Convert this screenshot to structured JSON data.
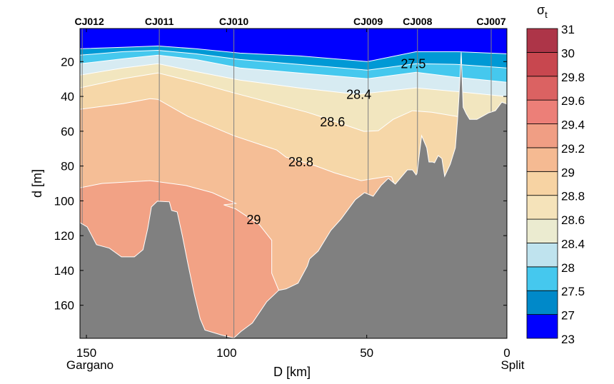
{
  "chart_data": {
    "type": "contour",
    "title": "",
    "xlabel": "D [km]",
    "ylabel": "d [m]",
    "xlim": [
      152.3,
      0
    ],
    "ylim": [
      1,
      179
    ],
    "x_ticks": [
      150,
      100,
      50,
      0
    ],
    "x_tick_labels": [
      "150",
      "100",
      "50",
      "0"
    ],
    "y_ticks": [
      20,
      40,
      60,
      80,
      100,
      120,
      140,
      160
    ],
    "y_tick_labels": [
      "20",
      "40",
      "60",
      "80",
      "100",
      "120",
      "140",
      "160"
    ],
    "endpoint_labels": {
      "left": "Gargano",
      "right": "Split"
    },
    "stations": [
      {
        "name": "CJ012",
        "km": 151.5
      },
      {
        "name": "CJ011",
        "km": 124.0
      },
      {
        "name": "CJ010",
        "km": 97.4
      },
      {
        "name": "CJ009",
        "km": 49.5
      },
      {
        "name": "CJ008",
        "km": 31.9
      },
      {
        "name": "CJ007",
        "km": 5.6
      }
    ],
    "deepest_band_color": "#F2A285",
    "isolines": [
      {
        "level": 29,
        "fill_above": "#F5BE96",
        "points": [
          [
            152.3,
            92.5
          ],
          [
            144.4,
            90.0
          ],
          [
            127.3,
            88.4
          ],
          [
            114.5,
            91.2
          ],
          [
            105.1,
            95.3
          ],
          [
            96.7,
            101.5
          ],
          [
            101.0,
            102.3
          ],
          [
            96.7,
            104.7
          ],
          [
            88.3,
            113.7
          ],
          [
            83.9,
            122.7
          ],
          [
            83.9,
            141.6
          ],
          [
            81.4,
            151.4
          ],
          [
            75,
            160
          ],
          [
            0,
            170
          ]
        ]
      },
      {
        "level": 28.8,
        "fill_above": "#F6D7A8",
        "points": [
          [
            152.3,
            47.4
          ],
          [
            137.0,
            44.2
          ],
          [
            127.3,
            41.3
          ],
          [
            124.5,
            41.7
          ],
          [
            113.8,
            51.5
          ],
          [
            97.4,
            62.6
          ],
          [
            82.1,
            70.8
          ],
          [
            78.8,
            74.9
          ],
          [
            68.4,
            79.8
          ],
          [
            61.5,
            83.9
          ],
          [
            52.0,
            88.4
          ],
          [
            42.3,
            85.9
          ],
          [
            41.1,
            86.3
          ],
          [
            38,
            100
          ],
          [
            0,
            100
          ]
        ]
      },
      {
        "level": 28.6,
        "fill_above": "#F2E6BF",
        "points": [
          [
            152.3,
            35.1
          ],
          [
            137.0,
            29.8
          ],
          [
            124.5,
            26.5
          ],
          [
            111.0,
            31.9
          ],
          [
            97.4,
            38.0
          ],
          [
            71.2,
            49.1
          ],
          [
            65.8,
            51.9
          ],
          [
            51.0,
            60.1
          ],
          [
            45.9,
            59.7
          ],
          [
            40.6,
            53.2
          ],
          [
            33.7,
            48.2
          ],
          [
            26.8,
            49.1
          ],
          [
            16.3,
            51.9
          ],
          [
            15,
            60
          ],
          [
            0,
            60
          ]
        ]
      },
      {
        "level": 28.4,
        "fill_above": "#D7EBF2",
        "points": [
          [
            152.3,
            27.8
          ],
          [
            137.0,
            23.7
          ],
          [
            124.5,
            21.2
          ],
          [
            111.0,
            25.7
          ],
          [
            95.2,
            30.6
          ],
          [
            74.2,
            35.1
          ],
          [
            53.3,
            38.8
          ],
          [
            32.4,
            35.1
          ],
          [
            17.9,
            37.2
          ],
          [
            0,
            40.1
          ]
        ]
      },
      {
        "level": 28,
        "fill_above": "#45C8EE",
        "points": [
          [
            152.3,
            21.2
          ],
          [
            137.0,
            18.4
          ],
          [
            124.5,
            16.3
          ],
          [
            111.0,
            18.8
          ],
          [
            95.2,
            23.7
          ],
          [
            74.2,
            26.5
          ],
          [
            49.7,
            29.8
          ],
          [
            32.4,
            26.1
          ],
          [
            17.9,
            29.0
          ],
          [
            0,
            31.9
          ]
        ]
      },
      {
        "level": 27.5,
        "fill_above": "#0099D5",
        "points": [
          [
            152.3,
            16.3
          ],
          [
            137.0,
            14.3
          ],
          [
            124.5,
            13.5
          ],
          [
            111.0,
            15.5
          ],
          [
            95.2,
            18.8
          ],
          [
            74.2,
            21.6
          ],
          [
            49.7,
            24.9
          ],
          [
            32.4,
            21.2
          ],
          [
            17.9,
            21.6
          ],
          [
            0,
            23.7
          ]
        ]
      },
      {
        "level": 27,
        "fill_above": "#0000FF",
        "points": [
          [
            152.3,
            12.6
          ],
          [
            137.0,
            11.8
          ],
          [
            124.5,
            11.0
          ],
          [
            111.0,
            12.6
          ],
          [
            95.2,
            15.1
          ],
          [
            74.2,
            16.7
          ],
          [
            49.7,
            20.0
          ],
          [
            32.4,
            14.3
          ],
          [
            17.9,
            14.3
          ],
          [
            0,
            15.5
          ]
        ]
      }
    ],
    "contour_labels": [
      {
        "text": "27.5",
        "km": 33.4,
        "depth": 20.8
      },
      {
        "text": "28.4",
        "km": 52.8,
        "depth": 38.5
      },
      {
        "text": "28.6",
        "km": 62.2,
        "depth": 54.4
      },
      {
        "text": "28.8",
        "km": 73.5,
        "depth": 77.3
      },
      {
        "text": "29",
        "km": 90.3,
        "depth": 110.5
      }
    ],
    "bathymetry": {
      "color": "#808080",
      "points": [
        [
          152.3,
          112.5
        ],
        [
          149.7,
          115
        ],
        [
          146.4,
          125.2
        ],
        [
          141.8,
          127.2
        ],
        [
          137.5,
          132.2
        ],
        [
          132.9,
          132.2
        ],
        [
          129.8,
          128.1
        ],
        [
          128.1,
          115.8
        ],
        [
          126.8,
          103.5
        ],
        [
          124.7,
          100.2
        ],
        [
          120.4,
          100.6
        ],
        [
          119.6,
          105.5
        ],
        [
          117.6,
          106.4
        ],
        [
          115.8,
          119.9
        ],
        [
          113.8,
          136.2
        ],
        [
          111.5,
          153.9
        ],
        [
          109.4,
          167.8
        ],
        [
          107.7,
          174.3
        ],
        [
          101.8,
          177.1
        ],
        [
          97.4,
          178.8
        ],
        [
          94.9,
          175.1
        ],
        [
          90.8,
          170.2
        ],
        [
          85.7,
          158
        ],
        [
          81.4,
          151.4
        ],
        [
          78.8,
          150.6
        ],
        [
          74.5,
          147.3
        ],
        [
          71.2,
          137.5
        ],
        [
          70.4,
          133.4
        ],
        [
          67.3,
          128.9
        ],
        [
          62.8,
          117
        ],
        [
          59.2,
          110.5
        ],
        [
          54.1,
          99.4
        ],
        [
          50.8,
          95.3
        ],
        [
          47.7,
          97.4
        ],
        [
          44.9,
          91.2
        ],
        [
          42.3,
          87.1
        ],
        [
          39.8,
          90.4
        ],
        [
          35.5,
          82.2
        ],
        [
          33.7,
          82.2
        ],
        [
          32.4,
          85.1
        ],
        [
          32.1,
          84.3
        ],
        [
          30.4,
          62.6
        ],
        [
          28.6,
          69.5
        ],
        [
          27.8,
          77.7
        ],
        [
          26.5,
          77.7
        ],
        [
          25.8,
          78.1
        ],
        [
          24.5,
          74.0
        ],
        [
          23.2,
          75.7
        ],
        [
          22.2,
          85.9
        ],
        [
          20.2,
          78.9
        ],
        [
          18.4,
          69.5
        ],
        [
          17.6,
          53.2
        ],
        [
          17.1,
          40
        ],
        [
          16.3,
          14.7
        ],
        [
          15.6,
          46.2
        ],
        [
          14.5,
          50
        ],
        [
          13.3,
          53.2
        ],
        [
          10.7,
          53.2
        ],
        [
          6.6,
          49.5
        ],
        [
          4.1,
          48.2
        ],
        [
          1.8,
          43.3
        ],
        [
          0.3,
          44.2
        ],
        [
          0,
          44.5
        ]
      ]
    },
    "colorbar": {
      "title": "σ",
      "title_sub": "t",
      "labels": [
        "23",
        "27",
        "27.5",
        "28",
        "28.4",
        "28.6",
        "28.8",
        "29",
        "29.2",
        "29.4",
        "29.6",
        "29.8",
        "30",
        "31"
      ],
      "colors": [
        "#0000FF",
        "#0089C9",
        "#45C8EE",
        "#BFE3EE",
        "#EBEBD0",
        "#F5E3BA",
        "#F7D3A3",
        "#F5BA92",
        "#F09E84",
        "#EC7F78",
        "#DB6262",
        "#C8474F",
        "#AD3548"
      ]
    }
  }
}
